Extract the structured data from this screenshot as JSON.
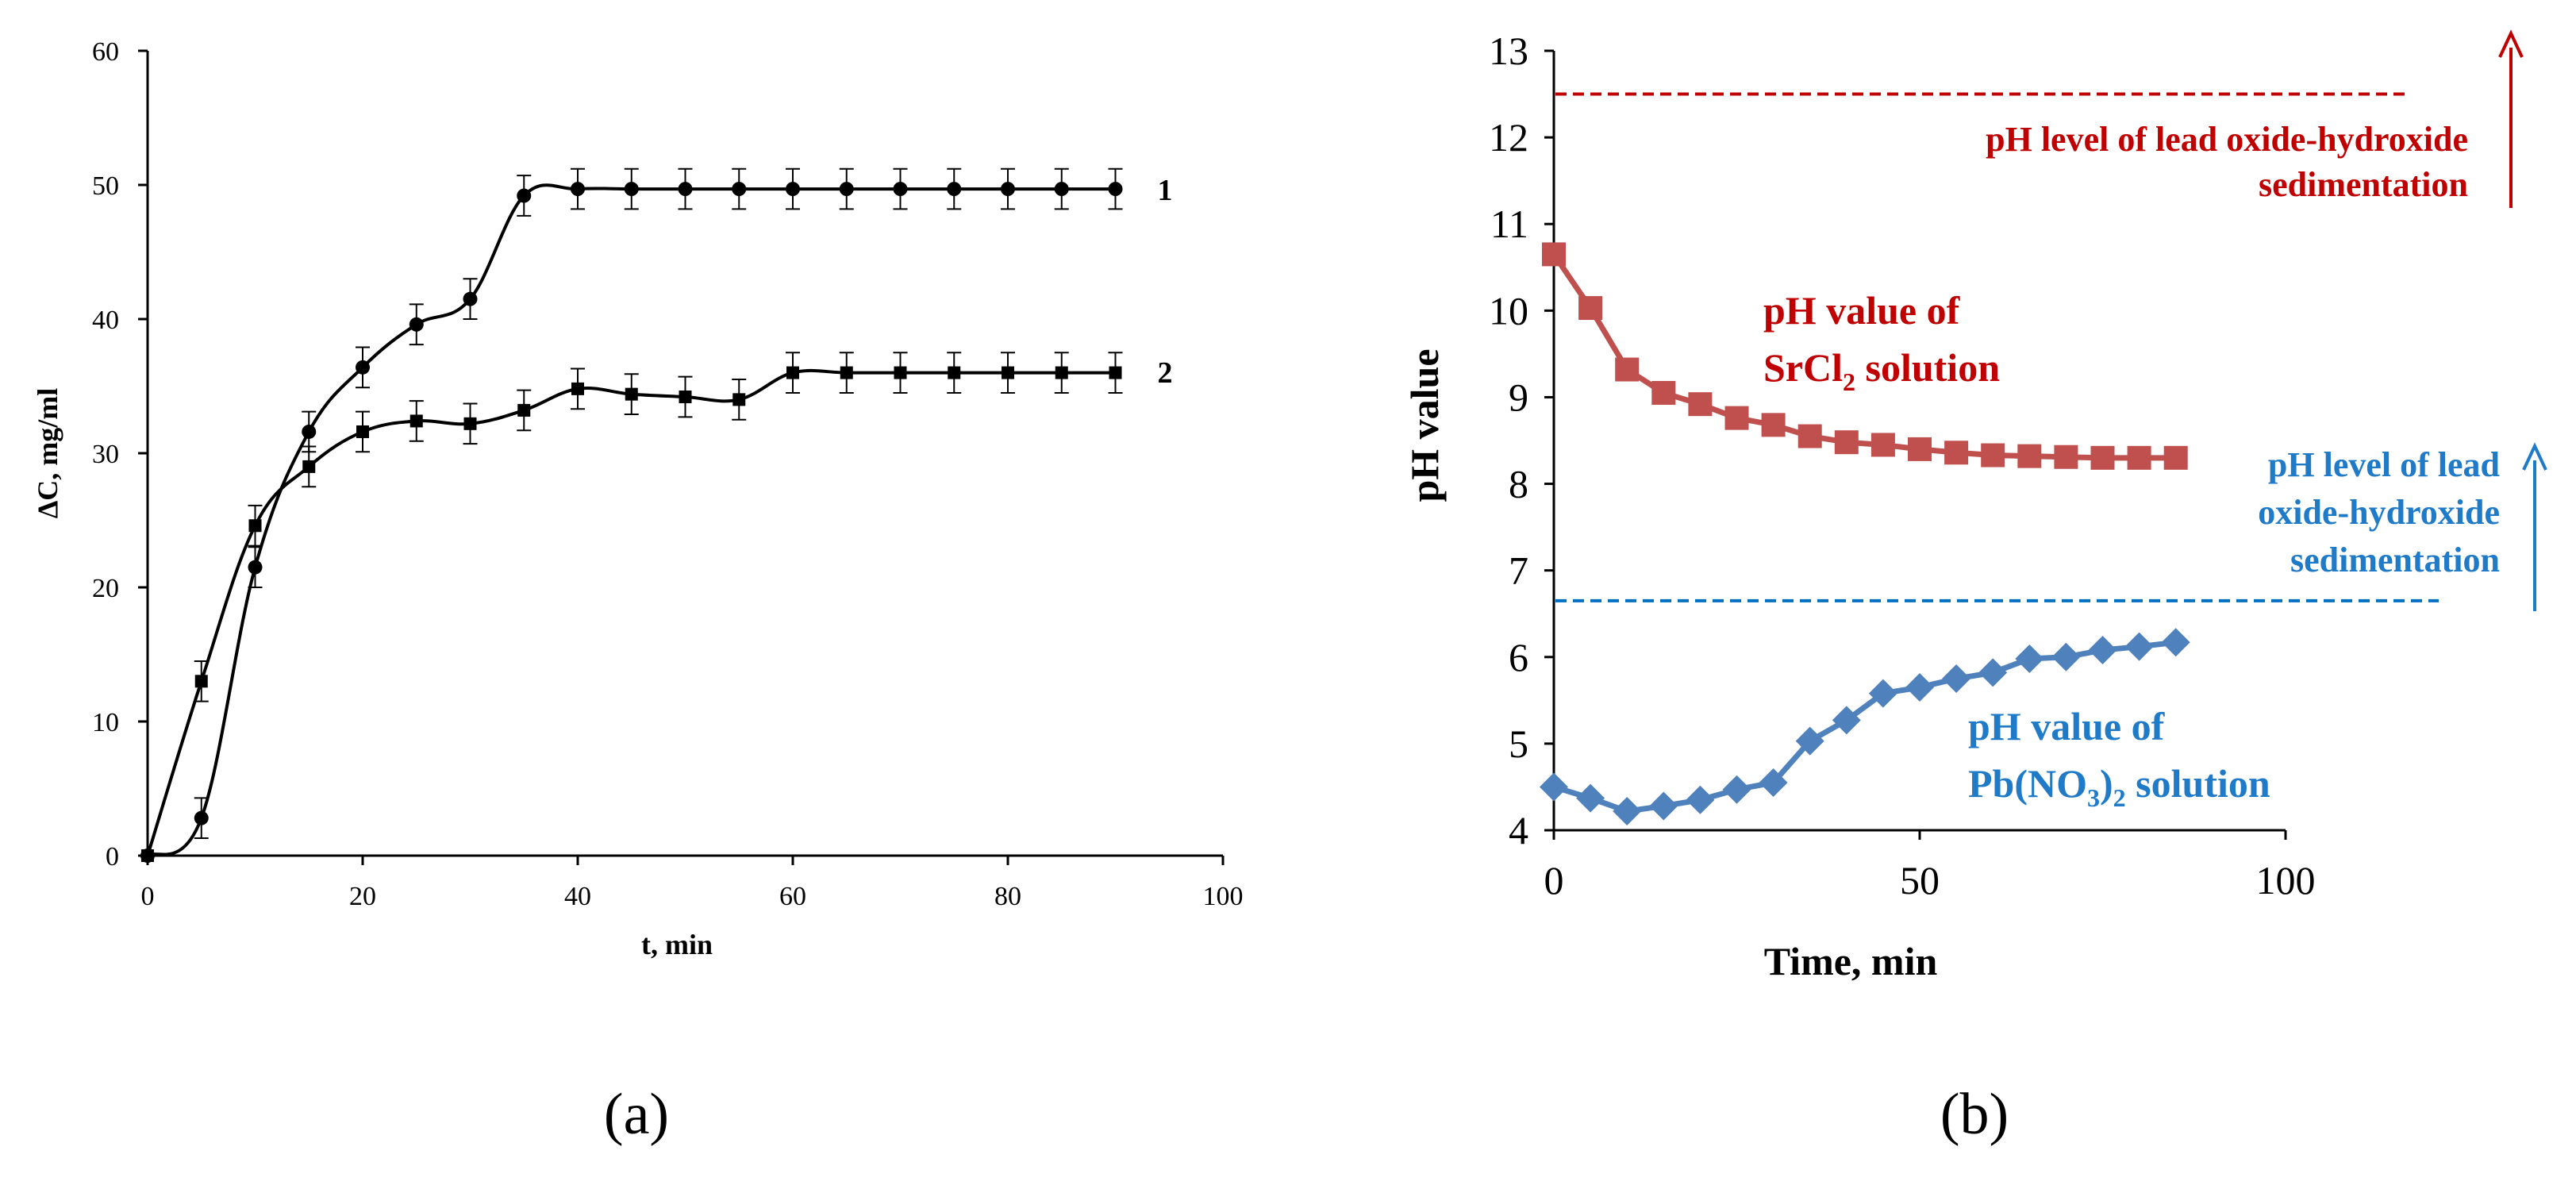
{
  "chart_data": [
    {
      "panel": "a",
      "type": "line",
      "title": "",
      "panel_label": "(a)",
      "xlabel": "t, min",
      "ylabel": "ΔC, mg/ml",
      "xlim": [
        0,
        100
      ],
      "ylim": [
        0,
        60
      ],
      "x_ticks": [
        0,
        20,
        40,
        60,
        80,
        100
      ],
      "y_ticks": [
        0,
        10,
        20,
        30,
        40,
        50,
        60
      ],
      "error_bar": 1.5,
      "series": [
        {
          "name": "1",
          "marker": "circle",
          "x": [
            0,
            5,
            10,
            15,
            20,
            25,
            30,
            35,
            40,
            45,
            50,
            55,
            60,
            65,
            70,
            75,
            80,
            85,
            90
          ],
          "values": [
            0,
            2.8,
            21.5,
            31.6,
            36.4,
            39.6,
            41.5,
            49.2,
            49.7,
            49.7,
            49.7,
            49.7,
            49.7,
            49.7,
            49.7,
            49.7,
            49.7,
            49.7,
            49.7
          ]
        },
        {
          "name": "2",
          "marker": "square",
          "x": [
            0,
            5,
            10,
            15,
            20,
            25,
            30,
            35,
            40,
            45,
            50,
            55,
            60,
            65,
            70,
            75,
            80,
            85,
            90
          ],
          "values": [
            0,
            13,
            24.6,
            29,
            31.6,
            32.4,
            32.2,
            33.2,
            34.8,
            34.4,
            34.2,
            34,
            36,
            36,
            36,
            36,
            36,
            36,
            36
          ]
        }
      ]
    },
    {
      "panel": "b",
      "type": "line",
      "title": "",
      "panel_label": "(b)",
      "xlabel": "Time, min",
      "ylabel": "pH value",
      "xlim": [
        0,
        100
      ],
      "ylim": [
        4,
        13
      ],
      "x_ticks": [
        0,
        50,
        100
      ],
      "y_ticks": [
        4,
        5,
        6,
        7,
        8,
        9,
        10,
        11,
        12,
        13
      ],
      "series": [
        {
          "name": "SrCl2 solution",
          "color": "#c0504d",
          "marker": "square",
          "x": [
            0,
            5,
            10,
            15,
            20,
            25,
            30,
            35,
            40,
            45,
            50,
            55,
            60,
            65,
            70,
            75,
            80,
            85
          ],
          "values": [
            10.65,
            10.03,
            9.32,
            9.05,
            8.92,
            8.76,
            8.68,
            8.55,
            8.48,
            8.45,
            8.4,
            8.36,
            8.33,
            8.32,
            8.31,
            8.3,
            8.3,
            8.3
          ]
        },
        {
          "name": "Pb(NO3)2 solution",
          "color": "#4f81bd",
          "marker": "diamond",
          "x": [
            0,
            5,
            10,
            15,
            20,
            25,
            30,
            35,
            40,
            45,
            50,
            55,
            60,
            65,
            70,
            75,
            80,
            85
          ],
          "values": [
            4.5,
            4.37,
            4.22,
            4.28,
            4.35,
            4.47,
            4.55,
            5.03,
            5.27,
            5.58,
            5.65,
            5.75,
            5.82,
            5.98,
            6.0,
            6.08,
            6.12,
            6.17
          ]
        }
      ],
      "reference_lines": [
        {
          "name": "pH level SrCl2",
          "y": 12.5,
          "color": "#c00000"
        },
        {
          "name": "pH level Pb(NO3)2",
          "y": 6.65,
          "color": "#0070c0"
        }
      ],
      "annotations": {
        "sr_value_l1": "pH value of",
        "sr_value_l2_a": "SrCl",
        "sr_value_l2_sub": "2",
        "sr_value_l2_b": " solution",
        "pb_value_l1": "pH value of",
        "pb_value_l2_a": "Pb(NO",
        "pb_value_l2_sub1": "3",
        "pb_value_l2_b": ")",
        "pb_value_l2_sub2": "2",
        "pb_value_l2_c": " solution",
        "sr_level_l1": "pH level of lead oxide-hydroxide",
        "sr_level_l2": "sedimentation",
        "pb_level_l1": "pH level of lead",
        "pb_level_l2": "oxide-hydroxide",
        "pb_level_l3": "sedimentation"
      }
    }
  ]
}
